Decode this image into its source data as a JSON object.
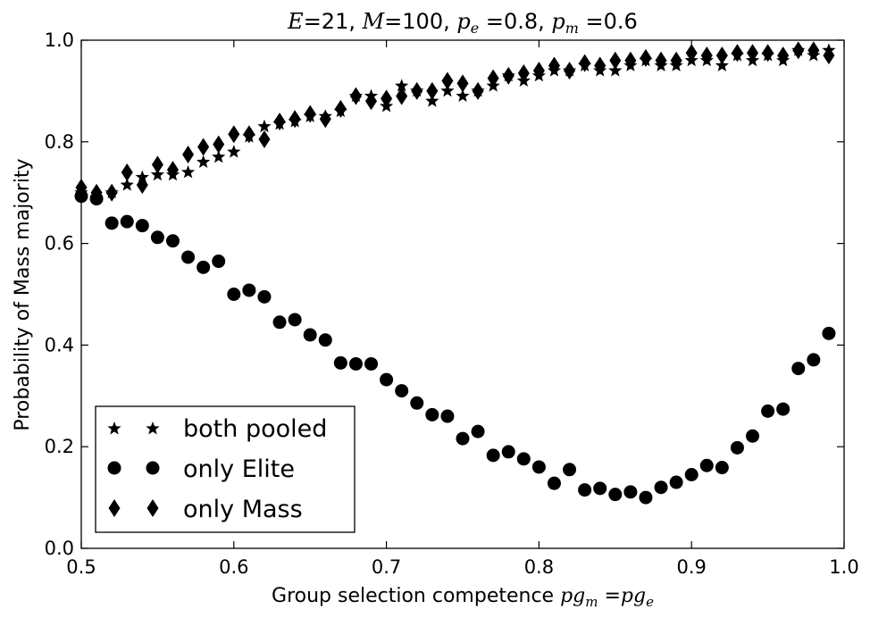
{
  "chart_data": {
    "type": "scatter",
    "title": "E=21, M=100, p_e =0.8, p_m =0.6",
    "title_parts": [
      "E",
      "=21, ",
      "M",
      "=100, ",
      "p",
      "e",
      " =0.8, ",
      "p",
      "m",
      " =0.6"
    ],
    "xlabel": "Group selection competence pg_m =pg_e",
    "xlabel_parts": [
      "Group selection competence ",
      "pg",
      "m",
      " =",
      "pg",
      "e"
    ],
    "ylabel": "Probability of Mass majority",
    "xlim": [
      0.5,
      1.0
    ],
    "ylim": [
      0.0,
      1.0
    ],
    "xticks": [
      0.5,
      0.6,
      0.7,
      0.8,
      0.9,
      1.0
    ],
    "xtick_labels": [
      "0.5",
      "0.6",
      "0.7",
      "0.8",
      "0.9",
      "1.0"
    ],
    "yticks": [
      0.0,
      0.2,
      0.4,
      0.6,
      0.8,
      1.0
    ],
    "ytick_labels": [
      "0.0",
      "0.2",
      "0.4",
      "0.6",
      "0.8",
      "1.0"
    ],
    "grid": false,
    "legend_position": "lower-left",
    "x": [
      0.5,
      0.51,
      0.52,
      0.53,
      0.54,
      0.55,
      0.56,
      0.57,
      0.58,
      0.59,
      0.6,
      0.61,
      0.62,
      0.63,
      0.64,
      0.65,
      0.66,
      0.67,
      0.68,
      0.69,
      0.7,
      0.71,
      0.72,
      0.73,
      0.74,
      0.75,
      0.76,
      0.77,
      0.78,
      0.79,
      0.8,
      0.81,
      0.82,
      0.83,
      0.84,
      0.85,
      0.86,
      0.87,
      0.88,
      0.89,
      0.9,
      0.91,
      0.92,
      0.93,
      0.94,
      0.95,
      0.96,
      0.97,
      0.98,
      0.99
    ],
    "series": [
      {
        "name": "both pooled",
        "marker": "star",
        "color": "#000000",
        "values": [
          0.7,
          0.69,
          0.7,
          0.715,
          0.73,
          0.735,
          0.735,
          0.74,
          0.76,
          0.77,
          0.78,
          0.81,
          0.83,
          0.835,
          0.84,
          0.85,
          0.85,
          0.86,
          0.89,
          0.89,
          0.87,
          0.91,
          0.9,
          0.88,
          0.9,
          0.89,
          0.9,
          0.91,
          0.93,
          0.92,
          0.93,
          0.94,
          0.94,
          0.95,
          0.94,
          0.94,
          0.95,
          0.96,
          0.95,
          0.95,
          0.96,
          0.96,
          0.95,
          0.97,
          0.96,
          0.97,
          0.96,
          0.98,
          0.97,
          0.98
        ]
      },
      {
        "name": "only Elite",
        "marker": "circle",
        "color": "#000000",
        "values": [
          0.693,
          0.688,
          0.64,
          0.643,
          0.635,
          0.612,
          0.605,
          0.573,
          0.553,
          0.565,
          0.5,
          0.508,
          0.495,
          0.445,
          0.45,
          0.42,
          0.41,
          0.365,
          0.363,
          0.363,
          0.332,
          0.31,
          0.286,
          0.263,
          0.26,
          0.216,
          0.23,
          0.183,
          0.19,
          0.176,
          0.16,
          0.128,
          0.155,
          0.115,
          0.118,
          0.106,
          0.111,
          0.1,
          0.12,
          0.13,
          0.145,
          0.163,
          0.159,
          0.198,
          0.221,
          0.27,
          0.274,
          0.354,
          0.371,
          0.423
        ]
      },
      {
        "name": "only Mass",
        "marker": "diamond",
        "color": "#000000",
        "values": [
          0.71,
          0.7,
          0.7,
          0.74,
          0.715,
          0.755,
          0.745,
          0.775,
          0.79,
          0.795,
          0.815,
          0.815,
          0.805,
          0.84,
          0.845,
          0.855,
          0.845,
          0.865,
          0.89,
          0.88,
          0.885,
          0.89,
          0.9,
          0.9,
          0.92,
          0.915,
          0.9,
          0.925,
          0.93,
          0.935,
          0.94,
          0.95,
          0.94,
          0.955,
          0.95,
          0.96,
          0.96,
          0.965,
          0.96,
          0.96,
          0.975,
          0.97,
          0.97,
          0.975,
          0.975,
          0.975,
          0.97,
          0.98,
          0.98,
          0.97
        ]
      }
    ]
  }
}
